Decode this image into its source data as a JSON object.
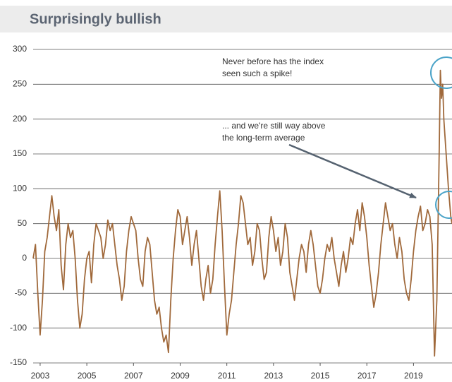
{
  "chart_data": {
    "type": "line",
    "title": "Surprisingly bullish",
    "annotations": [
      {
        "lines": [
          "Never before has the index",
          "seen such a spike!"
        ]
      },
      {
        "lines": [
          "... and we're still way above",
          "the long-term average"
        ]
      }
    ],
    "color": "#a0693b",
    "xlim": [
      2002.7,
      2020.65
    ],
    "xticks": [
      2003,
      2005,
      2007,
      2009,
      2011,
      2013,
      2015,
      2017,
      2019
    ],
    "ylim": [
      -150,
      300
    ],
    "yticks": [
      -150,
      -100,
      -50,
      0,
      50,
      100,
      150,
      200,
      250,
      300
    ],
    "grid": true,
    "x": [
      2002.7,
      2002.8,
      2002.9,
      2003,
      2003.1,
      2003.2,
      2003.3,
      2003.4,
      2003.5,
      2003.6,
      2003.7,
      2003.8,
      2003.9,
      2004,
      2004.1,
      2004.2,
      2004.3,
      2004.4,
      2004.5,
      2004.6,
      2004.7,
      2004.8,
      2004.9,
      2005,
      2005.1,
      2005.2,
      2005.3,
      2005.4,
      2005.5,
      2005.6,
      2005.7,
      2005.8,
      2005.9,
      2006,
      2006.1,
      2006.2,
      2006.3,
      2006.4,
      2006.5,
      2006.6,
      2006.7,
      2006.8,
      2006.9,
      2007,
      2007.1,
      2007.2,
      2007.3,
      2007.4,
      2007.5,
      2007.6,
      2007.7,
      2007.8,
      2007.9,
      2008,
      2008.1,
      2008.2,
      2008.3,
      2008.4,
      2008.5,
      2008.6,
      2008.7,
      2008.8,
      2008.9,
      2009,
      2009.1,
      2009.2,
      2009.3,
      2009.4,
      2009.5,
      2009.6,
      2009.7,
      2009.8,
      2009.9,
      2010,
      2010.1,
      2010.2,
      2010.3,
      2010.4,
      2010.5,
      2010.6,
      2010.7,
      2010.8,
      2010.9,
      2011,
      2011.1,
      2011.2,
      2011.3,
      2011.4,
      2011.5,
      2011.6,
      2011.7,
      2011.8,
      2011.9,
      2012,
      2012.1,
      2012.2,
      2012.3,
      2012.4,
      2012.5,
      2012.6,
      2012.7,
      2012.8,
      2012.9,
      2013,
      2013.1,
      2013.2,
      2013.3,
      2013.4,
      2013.5,
      2013.6,
      2013.7,
      2013.8,
      2013.9,
      2014,
      2014.1,
      2014.2,
      2014.3,
      2014.4,
      2014.5,
      2014.6,
      2014.7,
      2014.8,
      2014.9,
      2015,
      2015.1,
      2015.2,
      2015.3,
      2015.4,
      2015.5,
      2015.6,
      2015.7,
      2015.8,
      2015.9,
      2016,
      2016.1,
      2016.2,
      2016.3,
      2016.4,
      2016.5,
      2016.6,
      2016.7,
      2016.8,
      2016.9,
      2017,
      2017.1,
      2017.2,
      2017.3,
      2017.4,
      2017.5,
      2017.6,
      2017.7,
      2017.8,
      2017.9,
      2018,
      2018.1,
      2018.2,
      2018.3,
      2018.4,
      2018.5,
      2018.6,
      2018.7,
      2018.8,
      2018.9,
      2019,
      2019.1,
      2019.2,
      2019.3,
      2019.4,
      2019.5,
      2019.6,
      2019.7,
      2019.8,
      2019.9,
      2020,
      2020.1,
      2020.15,
      2020.2,
      2020.25,
      2020.3,
      2020.4,
      2020.5,
      2020.6,
      2020.65
    ],
    "values": [
      0,
      20,
      -50,
      -110,
      -60,
      10,
      30,
      60,
      90,
      60,
      40,
      70,
      -10,
      -45,
      20,
      50,
      30,
      40,
      0,
      -60,
      -100,
      -80,
      -30,
      0,
      10,
      -35,
      20,
      50,
      40,
      30,
      0,
      20,
      55,
      40,
      50,
      20,
      -10,
      -30,
      -60,
      -40,
      10,
      40,
      60,
      50,
      40,
      0,
      -30,
      -40,
      10,
      30,
      20,
      -20,
      -60,
      -80,
      -70,
      -100,
      -120,
      -110,
      -135,
      -60,
      0,
      40,
      70,
      60,
      20,
      40,
      60,
      30,
      -10,
      20,
      40,
      0,
      -40,
      -60,
      -30,
      -10,
      -50,
      -30,
      20,
      60,
      97,
      40,
      -40,
      -110,
      -80,
      -60,
      -20,
      20,
      50,
      90,
      80,
      50,
      20,
      30,
      -10,
      10,
      50,
      40,
      0,
      -30,
      -20,
      30,
      60,
      40,
      10,
      30,
      -10,
      10,
      50,
      30,
      -20,
      -40,
      -60,
      -30,
      0,
      20,
      10,
      -20,
      20,
      40,
      20,
      -10,
      -40,
      -50,
      -30,
      0,
      20,
      10,
      30,
      0,
      -20,
      -40,
      -10,
      10,
      -20,
      0,
      30,
      20,
      50,
      70,
      40,
      80,
      60,
      30,
      -10,
      -40,
      -70,
      -50,
      -20,
      20,
      50,
      80,
      60,
      40,
      50,
      20,
      0,
      30,
      10,
      -30,
      -50,
      -60,
      -30,
      10,
      40,
      60,
      75,
      40,
      50,
      70,
      60,
      20,
      -140,
      -60,
      150,
      270,
      230,
      250,
      200,
      150,
      100,
      60,
      50
    ]
  }
}
